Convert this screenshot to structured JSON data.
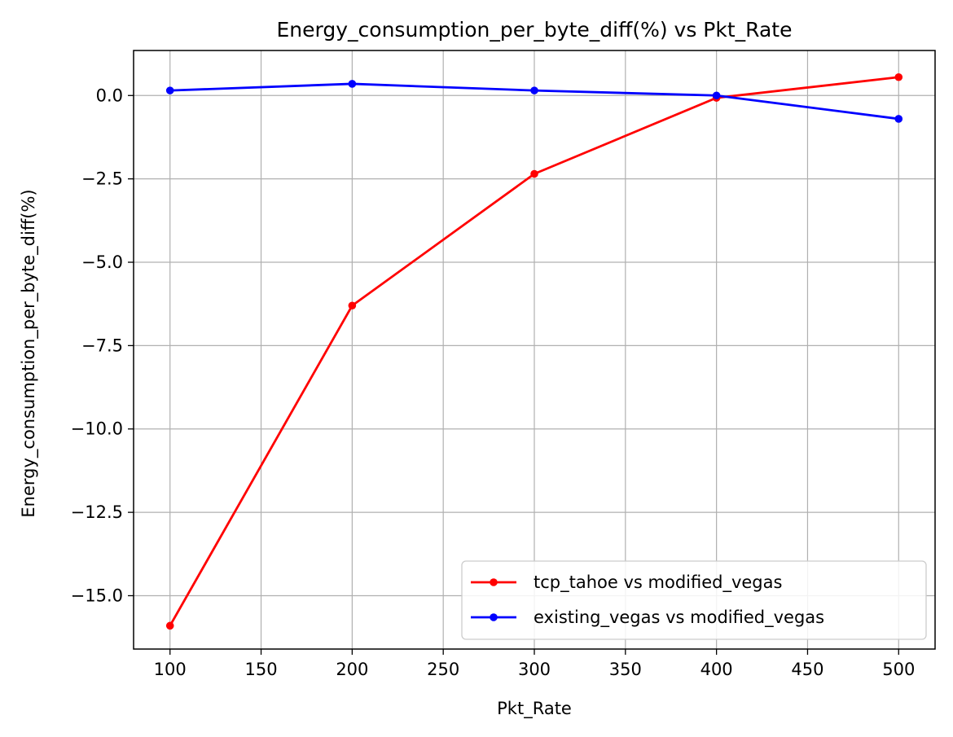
{
  "chart_data": {
    "type": "line",
    "title": "Energy_consumption_per_byte_diff(%) vs Pkt_Rate",
    "xlabel": "Pkt_Rate",
    "ylabel": "Energy_consumption_per_byte_diff(%)",
    "x": [
      100,
      200,
      300,
      400,
      500
    ],
    "xlim": [
      80,
      520
    ],
    "ylim": [
      -16.6,
      1.35
    ],
    "xticks": [
      100,
      150,
      200,
      250,
      300,
      350,
      400,
      450,
      500
    ],
    "yticks": [
      0.0,
      -2.5,
      -5.0,
      -7.5,
      -10.0,
      -12.5,
      -15.0
    ],
    "ytick_labels": [
      "0.0",
      "−2.5",
      "−5.0",
      "−7.5",
      "−10.0",
      "−12.5",
      "−15.0"
    ],
    "grid": true,
    "legend_position": "lower-right",
    "series": [
      {
        "name": "tcp_tahoe vs modified_vegas",
        "color": "#ff0000",
        "marker": "circle",
        "values": [
          -15.9,
          -6.3,
          -2.35,
          -0.07,
          0.55
        ]
      },
      {
        "name": "existing_vegas vs modified_vegas",
        "color": "#0000ff",
        "marker": "circle",
        "values": [
          0.15,
          0.35,
          0.15,
          0.0,
          -0.7
        ]
      }
    ]
  }
}
